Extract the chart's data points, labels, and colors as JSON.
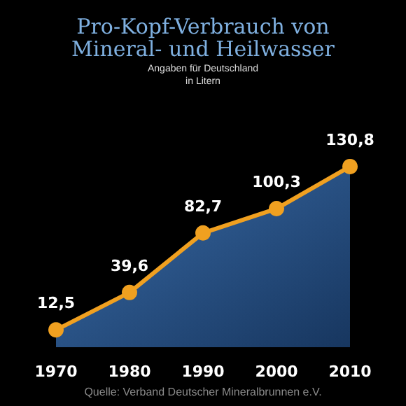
{
  "chart_data": {
    "type": "area",
    "title": "Pro-Kopf-Verbrauch von\nMineral- und Heilwasser",
    "subtitle": "Angaben für Deutschland\nin Litern",
    "categories": [
      "1970",
      "1980",
      "1990",
      "2000",
      "2010"
    ],
    "series": [
      {
        "color": "#f0a020",
        "values": [
          12.5,
          39.6,
          82.7,
          100.3,
          130.8
        ],
        "value_labels": [
          "12,5",
          "39,6",
          "82,7",
          "100,3",
          "130,8"
        ]
      }
    ],
    "marker": "circle",
    "annotations": [
      "Quelle: Verband Deutscher Mineralbrunnen e.V."
    ]
  }
}
